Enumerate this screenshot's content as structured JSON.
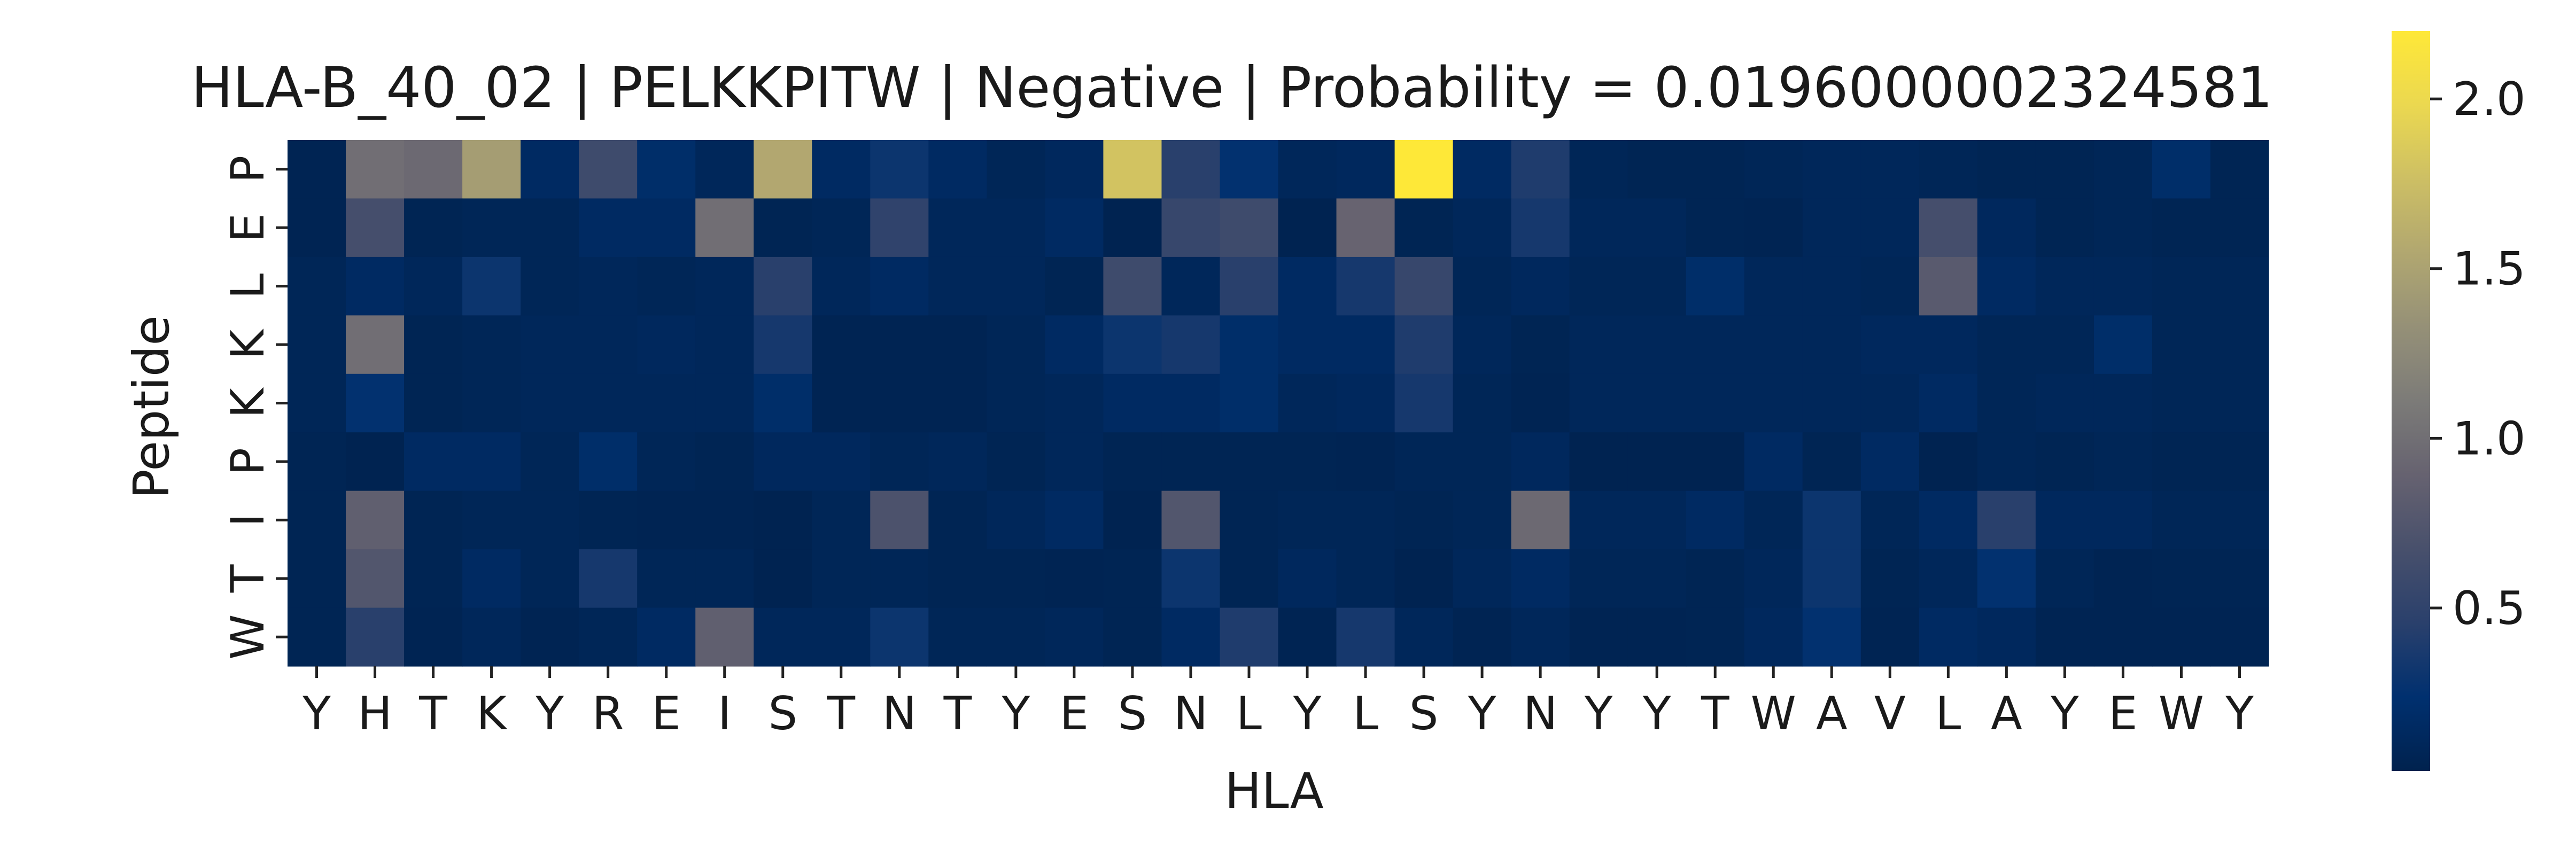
{
  "chart_data": {
    "type": "heatmap",
    "title": "HLA-B_40_02 | PELKKPITW | Negative | Probability = 0.0196000002324581",
    "xlabel": "HLA",
    "ylabel": "Peptide",
    "x_categories": [
      "Y",
      "H",
      "T",
      "K",
      "Y",
      "R",
      "E",
      "I",
      "S",
      "T",
      "N",
      "T",
      "Y",
      "E",
      "S",
      "N",
      "L",
      "Y",
      "L",
      "S",
      "Y",
      "N",
      "Y",
      "Y",
      "T",
      "W",
      "A",
      "V",
      "L",
      "A",
      "Y",
      "E",
      "W",
      "Y"
    ],
    "y_categories": [
      "P",
      "E",
      "L",
      "K",
      "K",
      "P",
      "I",
      "T",
      "W"
    ],
    "colormap": "cividis",
    "colorbar": {
      "ticks": [
        0.5,
        1.0,
        1.5,
        2.0
      ],
      "tick_labels": [
        "0.5",
        "1.0",
        "1.5",
        "2.0"
      ],
      "range": [
        0.02,
        2.2
      ]
    },
    "values": [
      [
        0.05,
        1.0,
        0.95,
        1.45,
        0.15,
        0.6,
        0.2,
        0.1,
        1.55,
        0.15,
        0.3,
        0.15,
        0.08,
        0.12,
        1.8,
        0.45,
        0.25,
        0.1,
        0.12,
        2.2,
        0.15,
        0.4,
        0.08,
        0.06,
        0.06,
        0.08,
        0.1,
        0.1,
        0.08,
        0.06,
        0.06,
        0.08,
        0.2,
        0.06
      ],
      [
        0.05,
        0.65,
        0.06,
        0.08,
        0.08,
        0.15,
        0.15,
        1.0,
        0.06,
        0.08,
        0.5,
        0.1,
        0.1,
        0.15,
        0.04,
        0.55,
        0.6,
        0.04,
        0.9,
        0.06,
        0.1,
        0.35,
        0.1,
        0.1,
        0.06,
        0.05,
        0.1,
        0.1,
        0.65,
        0.12,
        0.06,
        0.08,
        0.06,
        0.06
      ],
      [
        0.08,
        0.15,
        0.1,
        0.3,
        0.08,
        0.1,
        0.08,
        0.1,
        0.45,
        0.1,
        0.15,
        0.1,
        0.1,
        0.06,
        0.6,
        0.1,
        0.45,
        0.15,
        0.35,
        0.55,
        0.08,
        0.12,
        0.08,
        0.08,
        0.2,
        0.1,
        0.1,
        0.08,
        0.8,
        0.15,
        0.1,
        0.1,
        0.08,
        0.08
      ],
      [
        0.08,
        1.0,
        0.06,
        0.08,
        0.1,
        0.1,
        0.12,
        0.1,
        0.35,
        0.05,
        0.05,
        0.05,
        0.08,
        0.15,
        0.3,
        0.35,
        0.2,
        0.15,
        0.15,
        0.4,
        0.1,
        0.06,
        0.1,
        0.1,
        0.1,
        0.1,
        0.1,
        0.12,
        0.12,
        0.08,
        0.08,
        0.2,
        0.08,
        0.08
      ],
      [
        0.08,
        0.25,
        0.06,
        0.08,
        0.1,
        0.1,
        0.1,
        0.1,
        0.2,
        0.05,
        0.05,
        0.05,
        0.08,
        0.1,
        0.15,
        0.15,
        0.2,
        0.1,
        0.12,
        0.35,
        0.08,
        0.05,
        0.1,
        0.1,
        0.1,
        0.1,
        0.1,
        0.1,
        0.15,
        0.08,
        0.1,
        0.1,
        0.08,
        0.08
      ],
      [
        0.06,
        0.04,
        0.15,
        0.15,
        0.08,
        0.2,
        0.08,
        0.06,
        0.12,
        0.12,
        0.08,
        0.1,
        0.06,
        0.1,
        0.06,
        0.06,
        0.06,
        0.06,
        0.05,
        0.08,
        0.08,
        0.12,
        0.04,
        0.04,
        0.04,
        0.15,
        0.06,
        0.15,
        0.04,
        0.08,
        0.06,
        0.08,
        0.06,
        0.06
      ],
      [
        0.06,
        0.85,
        0.06,
        0.08,
        0.08,
        0.06,
        0.05,
        0.05,
        0.04,
        0.08,
        0.7,
        0.06,
        0.1,
        0.15,
        0.04,
        0.75,
        0.06,
        0.08,
        0.08,
        0.06,
        0.08,
        0.95,
        0.1,
        0.1,
        0.15,
        0.08,
        0.3,
        0.08,
        0.15,
        0.45,
        0.12,
        0.12,
        0.08,
        0.08
      ],
      [
        0.06,
        0.75,
        0.06,
        0.15,
        0.08,
        0.35,
        0.08,
        0.08,
        0.04,
        0.08,
        0.08,
        0.06,
        0.06,
        0.05,
        0.06,
        0.3,
        0.06,
        0.12,
        0.08,
        0.04,
        0.1,
        0.15,
        0.08,
        0.08,
        0.06,
        0.1,
        0.3,
        0.06,
        0.1,
        0.25,
        0.08,
        0.05,
        0.06,
        0.06
      ],
      [
        0.06,
        0.45,
        0.05,
        0.1,
        0.05,
        0.08,
        0.15,
        0.85,
        0.1,
        0.1,
        0.3,
        0.08,
        0.08,
        0.1,
        0.06,
        0.15,
        0.4,
        0.05,
        0.35,
        0.1,
        0.05,
        0.1,
        0.05,
        0.05,
        0.06,
        0.12,
        0.25,
        0.05,
        0.15,
        0.12,
        0.05,
        0.05,
        0.05,
        0.05
      ]
    ]
  }
}
